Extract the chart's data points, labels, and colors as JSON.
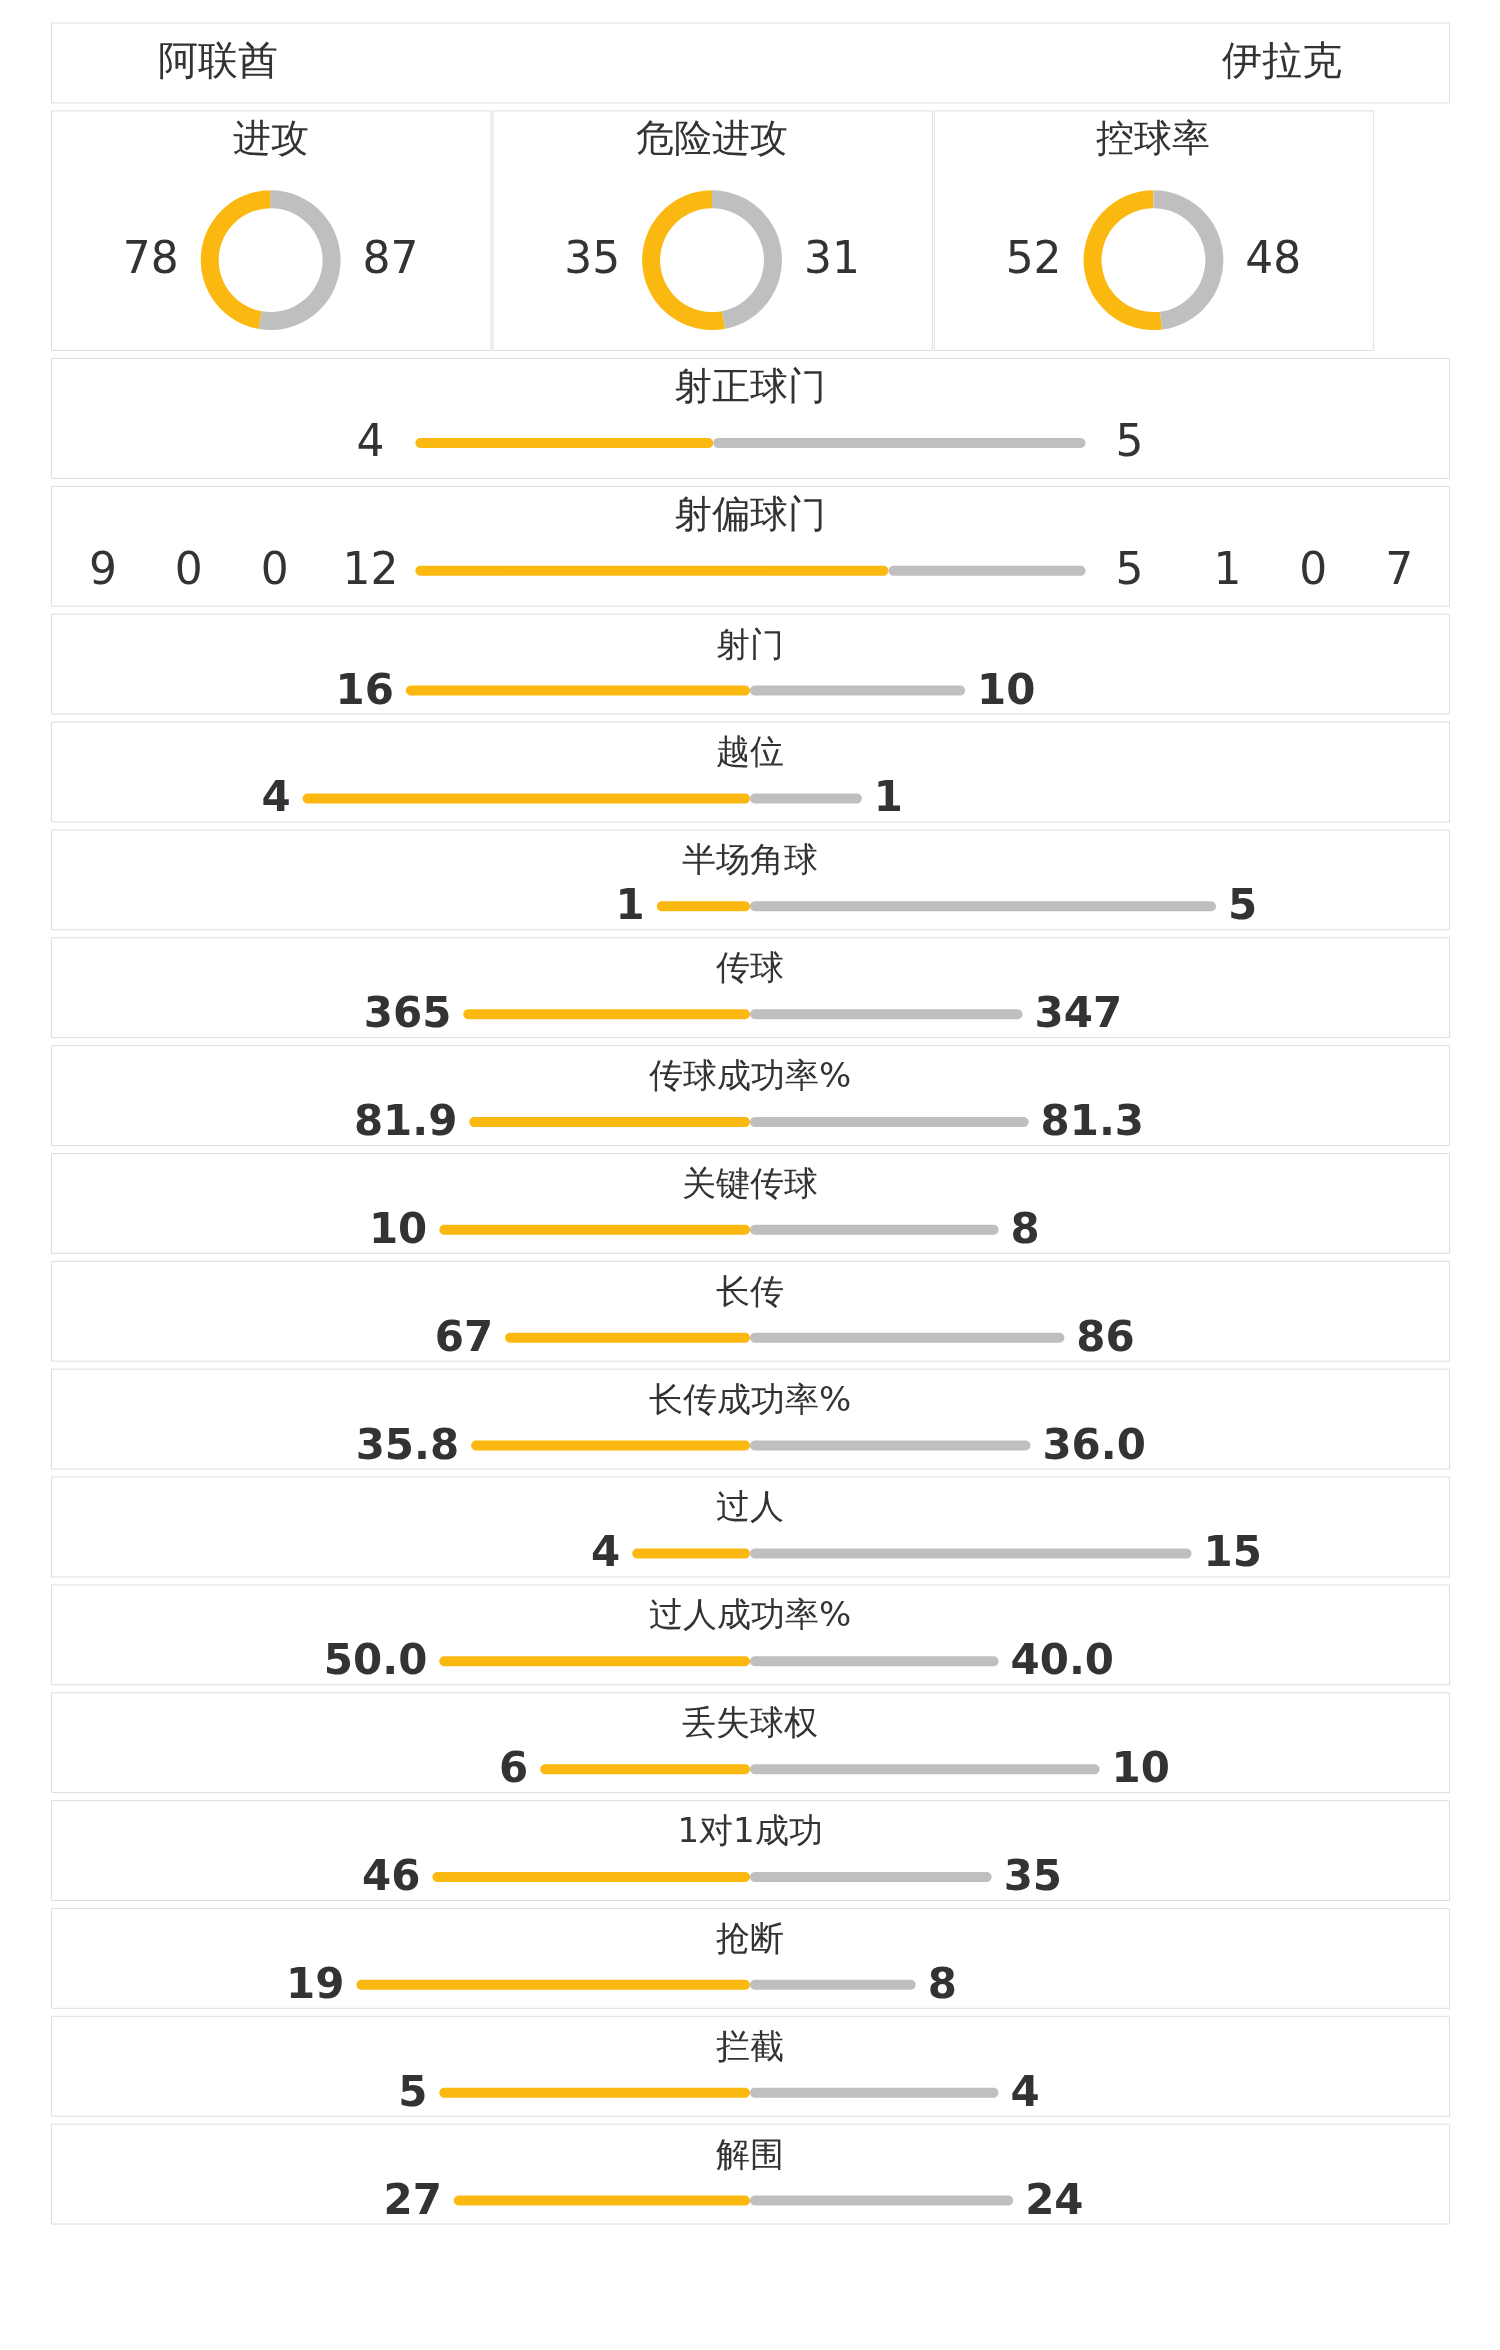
{
  "chart_data": [
    {
      "type": "other",
      "annotations": [
        "阿联酋",
        "伊拉克"
      ]
    },
    {
      "type": "donut",
      "title": "进攻",
      "categories": [
        null,
        null
      ],
      "values": [
        78,
        87
      ],
      "colors": [
        "#fbb810",
        "#bfbfbf"
      ],
      "data_labels": true
    },
    {
      "type": "donut",
      "title": "危险进攻",
      "categories": [
        null,
        null
      ],
      "values": [
        35,
        31
      ],
      "colors": [
        "#fbb810",
        "#bfbfbf"
      ],
      "data_labels": true
    },
    {
      "type": "donut",
      "title": "控球率",
      "categories": [
        null,
        null
      ],
      "values": [
        52,
        48
      ],
      "colors": [
        "#fbb810",
        "#bfbfbf"
      ],
      "data_labels": true
    },
    {
      "type": "bar",
      "title": "射正球门",
      "orientation": "horizontal",
      "stacked": true,
      "categories": [
        null
      ],
      "data_labels": true,
      "series": [
        {
          "color": "#fbb810",
          "values": [
            4
          ]
        },
        {
          "color": "#bfbfbf",
          "values": [
            5
          ]
        }
      ]
    },
    {
      "type": "bar",
      "title": "射偏球门",
      "orientation": "horizontal",
      "stacked": true,
      "categories": [
        null
      ],
      "data_labels": true,
      "annotations": [
        "9",
        "0",
        "0",
        "1",
        "0",
        "7"
      ],
      "series": [
        {
          "color": "#fbb810",
          "values": [
            12
          ]
        },
        {
          "color": "#bfbfbf",
          "values": [
            5
          ]
        }
      ]
    },
    {
      "type": "bar",
      "orientation": "horizontal",
      "categories": [
        "射门"
      ],
      "stacked": true,
      "data_labels": true,
      "series": [
        {
          "color": "#fbb810",
          "values": [
            16
          ]
        },
        {
          "color": "#bfbfbf",
          "values": [
            10
          ]
        }
      ]
    },
    {
      "type": "bar",
      "orientation": "horizontal",
      "categories": [
        "越位"
      ],
      "stacked": true,
      "data_labels": true,
      "series": [
        {
          "color": "#fbb810",
          "values": [
            4
          ]
        },
        {
          "color": "#bfbfbf",
          "values": [
            1
          ]
        }
      ]
    },
    {
      "type": "bar",
      "orientation": "horizontal",
      "categories": [
        "半场角球"
      ],
      "stacked": true,
      "data_labels": true,
      "series": [
        {
          "color": "#fbb810",
          "values": [
            1
          ]
        },
        {
          "color": "#bfbfbf",
          "values": [
            5
          ]
        }
      ]
    },
    {
      "type": "bar",
      "orientation": "horizontal",
      "categories": [
        "传球"
      ],
      "stacked": true,
      "data_labels": true,
      "series": [
        {
          "color": "#fbb810",
          "values": [
            365
          ]
        },
        {
          "color": "#bfbfbf",
          "values": [
            347
          ]
        }
      ]
    },
    {
      "type": "bar",
      "orientation": "horizontal",
      "categories": [
        "传球成功率%"
      ],
      "stacked": true,
      "data_labels": true,
      "series": [
        {
          "color": "#fbb810",
          "values": [
            81.9
          ]
        },
        {
          "color": "#bfbfbf",
          "values": [
            81.3
          ]
        }
      ]
    },
    {
      "type": "bar",
      "orientation": "horizontal",
      "categories": [
        "关键传球"
      ],
      "stacked": true,
      "data_labels": true,
      "series": [
        {
          "color": "#fbb810",
          "values": [
            10
          ]
        },
        {
          "color": "#bfbfbf",
          "values": [
            8
          ]
        }
      ]
    },
    {
      "type": "bar",
      "orientation": "horizontal",
      "categories": [
        "长传"
      ],
      "stacked": true,
      "data_labels": true,
      "series": [
        {
          "color": "#fbb810",
          "values": [
            67
          ]
        },
        {
          "color": "#bfbfbf",
          "values": [
            86
          ]
        }
      ]
    },
    {
      "type": "bar",
      "orientation": "horizontal",
      "categories": [
        "长传成功率%"
      ],
      "stacked": true,
      "series": [
        {
          "color": "#fbb810",
          "values": [
            35.8
          ],
          "value_labels": [
            "35.8"
          ]
        },
        {
          "color": "#bfbfbf",
          "values": [
            36.0
          ],
          "value_labels": [
            "36.0"
          ]
        }
      ]
    },
    {
      "type": "bar",
      "orientation": "horizontal",
      "categories": [
        "过人"
      ],
      "stacked": true,
      "data_labels": true,
      "series": [
        {
          "color": "#fbb810",
          "values": [
            4
          ]
        },
        {
          "color": "#bfbfbf",
          "values": [
            15
          ]
        }
      ]
    },
    {
      "type": "bar",
      "orientation": "horizontal",
      "categories": [
        "过人成功率%"
      ],
      "stacked": true,
      "series": [
        {
          "color": "#fbb810",
          "values": [
            50.0
          ],
          "value_labels": [
            "50.0"
          ]
        },
        {
          "color": "#bfbfbf",
          "values": [
            40.0
          ],
          "value_labels": [
            "40.0"
          ]
        }
      ]
    },
    {
      "type": "bar",
      "orientation": "horizontal",
      "categories": [
        "丢失球权"
      ],
      "stacked": true,
      "data_labels": true,
      "series": [
        {
          "color": "#fbb810",
          "values": [
            6
          ]
        },
        {
          "color": "#bfbfbf",
          "values": [
            10
          ]
        }
      ]
    },
    {
      "type": "bar",
      "orientation": "horizontal",
      "categories": [
        "1对1成功"
      ],
      "stacked": true,
      "data_labels": true,
      "series": [
        {
          "color": "#fbb810",
          "values": [
            46
          ]
        },
        {
          "color": "#bfbfbf",
          "values": [
            35
          ]
        }
      ]
    },
    {
      "type": "bar",
      "orientation": "horizontal",
      "categories": [
        "抢断"
      ],
      "stacked": true,
      "data_labels": true,
      "series": [
        {
          "color": "#fbb810",
          "values": [
            19
          ]
        },
        {
          "color": "#bfbfbf",
          "values": [
            8
          ]
        }
      ]
    },
    {
      "type": "bar",
      "orientation": "horizontal",
      "categories": [
        "拦截"
      ],
      "stacked": true,
      "data_labels": true,
      "series": [
        {
          "color": "#fbb810",
          "values": [
            5
          ]
        },
        {
          "color": "#bfbfbf",
          "values": [
            4
          ]
        }
      ]
    },
    {
      "type": "bar",
      "orientation": "horizontal",
      "categories": [
        "解围"
      ],
      "stacked": true,
      "data_labels": true,
      "series": [
        {
          "color": "#fbb810",
          "values": [
            27
          ]
        },
        {
          "color": "#bfbfbf",
          "values": [
            24
          ]
        }
      ]
    }
  ]
}
